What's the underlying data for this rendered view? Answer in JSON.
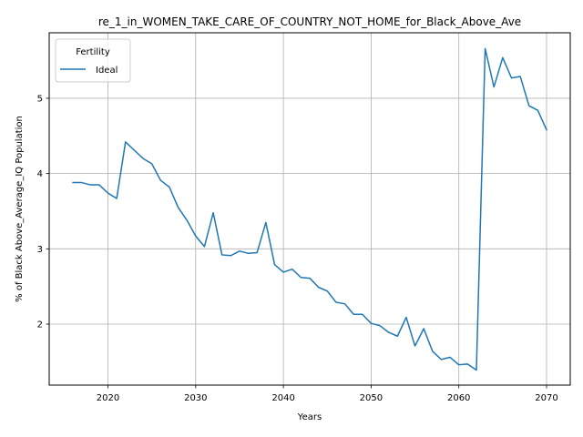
{
  "chart_data": {
    "type": "line",
    "title": "re_1_in_WOMEN_TAKE_CARE_OF_COUNTRY_NOT_HOME_for_Black_Above_Ave",
    "xlabel": "Years",
    "ylabel": "% of Black Above_Average_IQ Population",
    "xlim": [
      2013.3,
      2072.7
    ],
    "ylim": [
      1.19,
      5.87
    ],
    "xticks": [
      2020,
      2030,
      2040,
      2050,
      2060,
      2070
    ],
    "yticks": [
      2,
      3,
      4,
      5
    ],
    "grid": true,
    "legend": {
      "title": "Fertility",
      "placement": "top-left"
    },
    "series": [
      {
        "name": "Ideal",
        "color": "#1f77b4",
        "x": [
          2016,
          2017,
          2018,
          2019,
          2020,
          2021,
          2022,
          2023,
          2024,
          2025,
          2026,
          2027,
          2028,
          2029,
          2030,
          2031,
          2032,
          2033,
          2034,
          2035,
          2036,
          2037,
          2038,
          2039,
          2040,
          2041,
          2042,
          2043,
          2044,
          2045,
          2046,
          2047,
          2048,
          2049,
          2050,
          2051,
          2052,
          2053,
          2054,
          2055,
          2056,
          2057,
          2058,
          2059,
          2060,
          2061,
          2062,
          2063,
          2064,
          2065,
          2066,
          2067,
          2068,
          2069,
          2070
        ],
        "values": [
          3.88,
          3.88,
          3.85,
          3.85,
          3.74,
          3.67,
          4.42,
          4.31,
          4.2,
          4.13,
          3.91,
          3.82,
          3.55,
          3.38,
          3.17,
          3.03,
          3.48,
          2.92,
          2.91,
          2.97,
          2.94,
          2.95,
          3.35,
          2.79,
          2.69,
          2.73,
          2.62,
          2.61,
          2.49,
          2.44,
          2.29,
          2.27,
          2.13,
          2.13,
          2.01,
          1.98,
          1.89,
          1.84,
          2.09,
          1.71,
          1.94,
          1.64,
          1.53,
          1.56,
          1.46,
          1.47,
          1.39,
          5.66,
          5.15,
          5.54,
          5.27,
          5.29,
          4.9,
          4.84,
          4.58
        ]
      }
    ]
  }
}
